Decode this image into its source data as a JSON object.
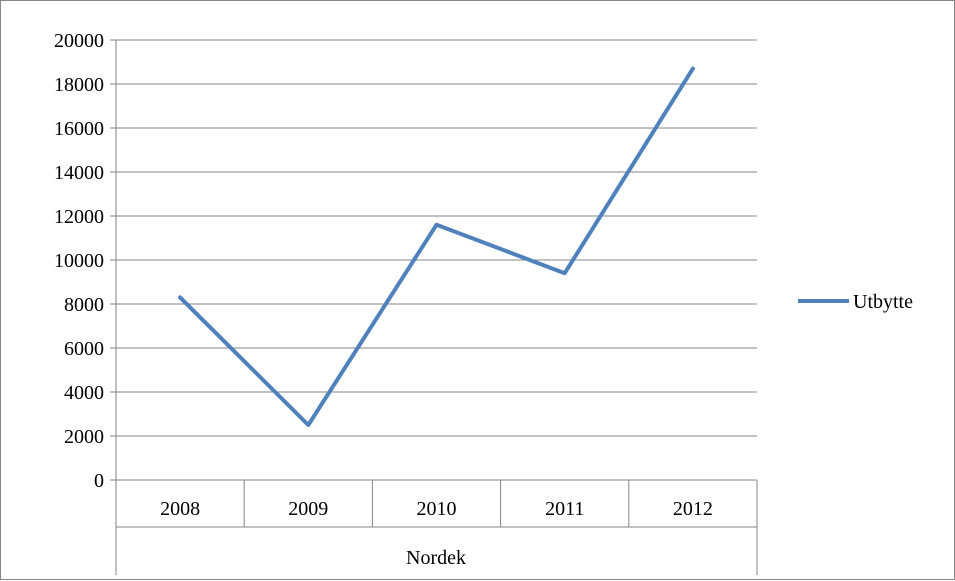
{
  "chart_data": {
    "type": "line",
    "categories": [
      "2008",
      "2009",
      "2010",
      "2011",
      "2012"
    ],
    "group_label": "Nordek",
    "series": [
      {
        "name": "Utbytte",
        "values": [
          8300,
          2500,
          11600,
          9400,
          18700
        ],
        "color": "#4f81bd"
      }
    ],
    "ylim": [
      0,
      20000
    ],
    "yticks": [
      "0",
      "2000",
      "4000",
      "6000",
      "8000",
      "10000",
      "12000",
      "14000",
      "16000",
      "18000",
      "20000"
    ],
    "grid": true,
    "legend_position": "right"
  }
}
